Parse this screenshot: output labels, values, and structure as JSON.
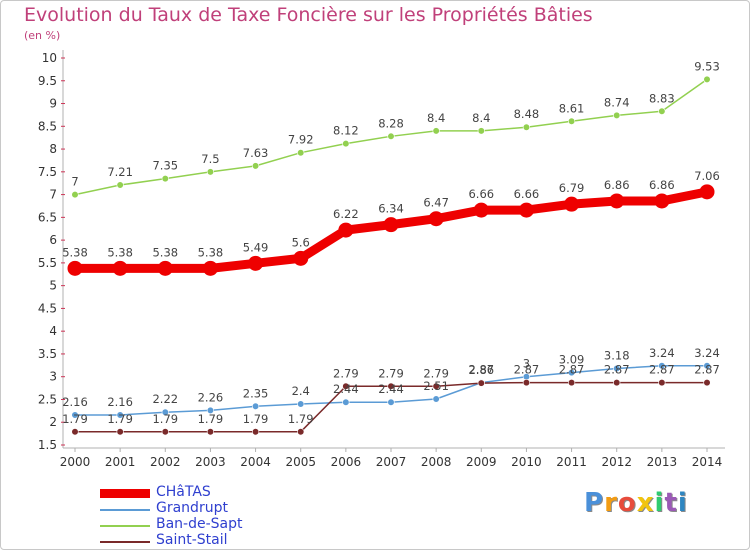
{
  "chart_data": {
    "type": "line",
    "title": "Evolution du Taux de Taxe Foncière sur les Propriétés Bâties",
    "subtitle": "(en %)",
    "xlabel": "",
    "ylabel": "",
    "ylim": [
      1.5,
      10
    ],
    "yticks": [
      "1.5",
      "2",
      "2.5",
      "3",
      "3.5",
      "4",
      "4.5",
      "5",
      "5.5",
      "6",
      "6.5",
      "7",
      "7.5",
      "8",
      "8.5",
      "9",
      "9.5",
      "10"
    ],
    "categories": [
      "2000",
      "2001",
      "2002",
      "2003",
      "2004",
      "2005",
      "2006",
      "2007",
      "2008",
      "2009",
      "2010",
      "2011",
      "2012",
      "2013",
      "2014"
    ],
    "series": [
      {
        "name": "CHâTAS",
        "color": "#ee0000",
        "values": [
          5.38,
          5.38,
          5.38,
          5.38,
          5.49,
          5.6,
          6.22,
          6.34,
          6.47,
          6.66,
          6.66,
          6.79,
          6.86,
          6.86,
          7.06
        ],
        "labels": [
          "5.38",
          "5.38",
          "5.38",
          "5.38",
          "5.49",
          "5.6",
          "6.22",
          "6.34",
          "6.47",
          "6.66",
          "6.66",
          "6.79",
          "6.86",
          "6.86",
          "7.06"
        ]
      },
      {
        "name": "Grandrupt",
        "color": "#5b9bd5",
        "values": [
          2.16,
          2.16,
          2.22,
          2.26,
          2.35,
          2.4,
          2.44,
          2.44,
          2.51,
          2.87,
          3.0,
          3.09,
          3.18,
          3.24,
          3.24
        ],
        "labels": [
          "2.16",
          "2.16",
          "2.22",
          "2.26",
          "2.35",
          "2.4",
          "2.44",
          "2.44",
          "2.51",
          "2.87",
          "3",
          "3.09",
          "3.18",
          "3.24",
          "3.24"
        ]
      },
      {
        "name": "Ban-de-Sapt",
        "color": "#92d050",
        "values": [
          7.0,
          7.21,
          7.35,
          7.5,
          7.63,
          7.92,
          8.12,
          8.28,
          8.4,
          8.4,
          8.48,
          8.61,
          8.74,
          8.83,
          9.53
        ],
        "labels": [
          "7",
          "7.21",
          "7.35",
          "7.5",
          "7.63",
          "7.92",
          "8.12",
          "8.28",
          "8.4",
          "8.4",
          "8.48",
          "8.61",
          "8.74",
          "8.83",
          "9.53"
        ]
      },
      {
        "name": "Saint-Stail",
        "color": "#7a2a2a",
        "values": [
          1.79,
          1.79,
          1.79,
          1.79,
          1.79,
          1.79,
          2.79,
          2.79,
          2.79,
          2.86,
          2.87,
          2.87,
          2.87,
          2.87,
          2.87
        ],
        "labels": [
          "1.79",
          "1.79",
          "1.79",
          "1.79",
          "1.79",
          "1.79",
          "2.79",
          "2.79",
          "2.79",
          "2.86",
          "2.87",
          "2.87",
          "2.87",
          "2.87",
          "2.87"
        ]
      }
    ],
    "legend": "bottom-left",
    "grid": false
  },
  "logo": {
    "text": "Proxiti",
    "letters": [
      "P",
      "r",
      "o",
      "x",
      "i",
      "t",
      "i"
    ],
    "colors": [
      "#4a90d9",
      "#f39c12",
      "#e74c3c",
      "#f1c40f",
      "#2ecc71",
      "#9b59b6",
      "#2e86c1"
    ]
  }
}
